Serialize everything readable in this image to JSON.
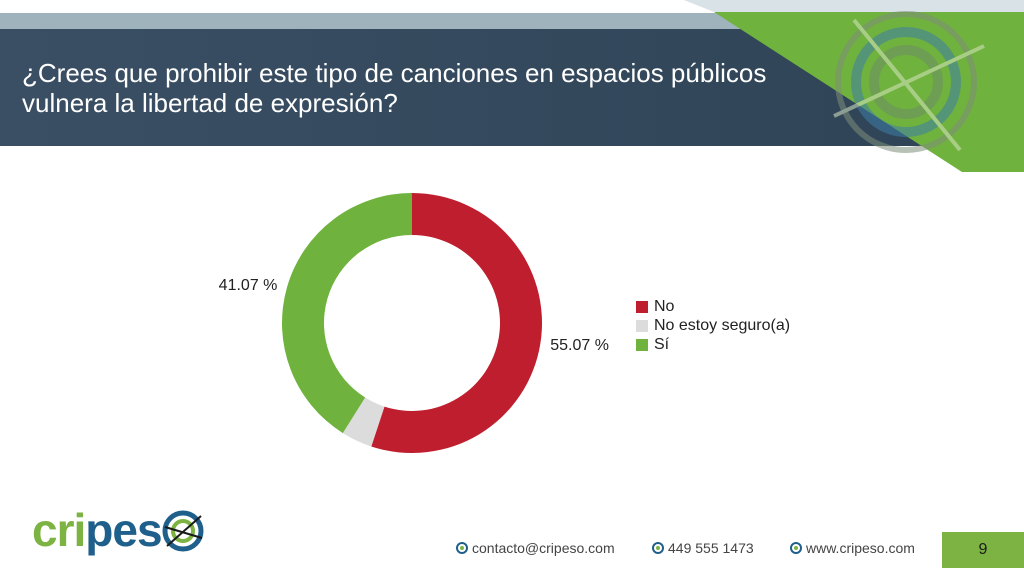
{
  "header": {
    "title_line1": "¿Crees que prohibir este tipo de canciones en espacios públicos",
    "title_line2": "vulnera la libertad de expresión?"
  },
  "colors": {
    "title_bar": "#344a5e",
    "accent_green": "#6fb23d",
    "no_red": "#be1e2d",
    "unsure_gray": "#dcdcdc",
    "yes_green": "#6fb23d"
  },
  "chart_data": {
    "type": "pie",
    "style": "donut",
    "categories": [
      "No",
      "No estoy seguro(a)",
      "Sí"
    ],
    "values": [
      55.07,
      3.86,
      41.07
    ],
    "data_labels": [
      "55.07 %",
      "",
      "41.07 %"
    ],
    "colors": [
      "#be1e2d",
      "#dcdcdc",
      "#6fb23d"
    ],
    "legend_position": "right",
    "title": ""
  },
  "brand": {
    "logo_part1": "cri",
    "logo_part2": "pes",
    "logo_icon": "target-icon"
  },
  "footer": {
    "email": "contacto@cripeso.com",
    "phone": "449 555 1473",
    "website": "www.cripeso.com",
    "page_number": "9"
  }
}
